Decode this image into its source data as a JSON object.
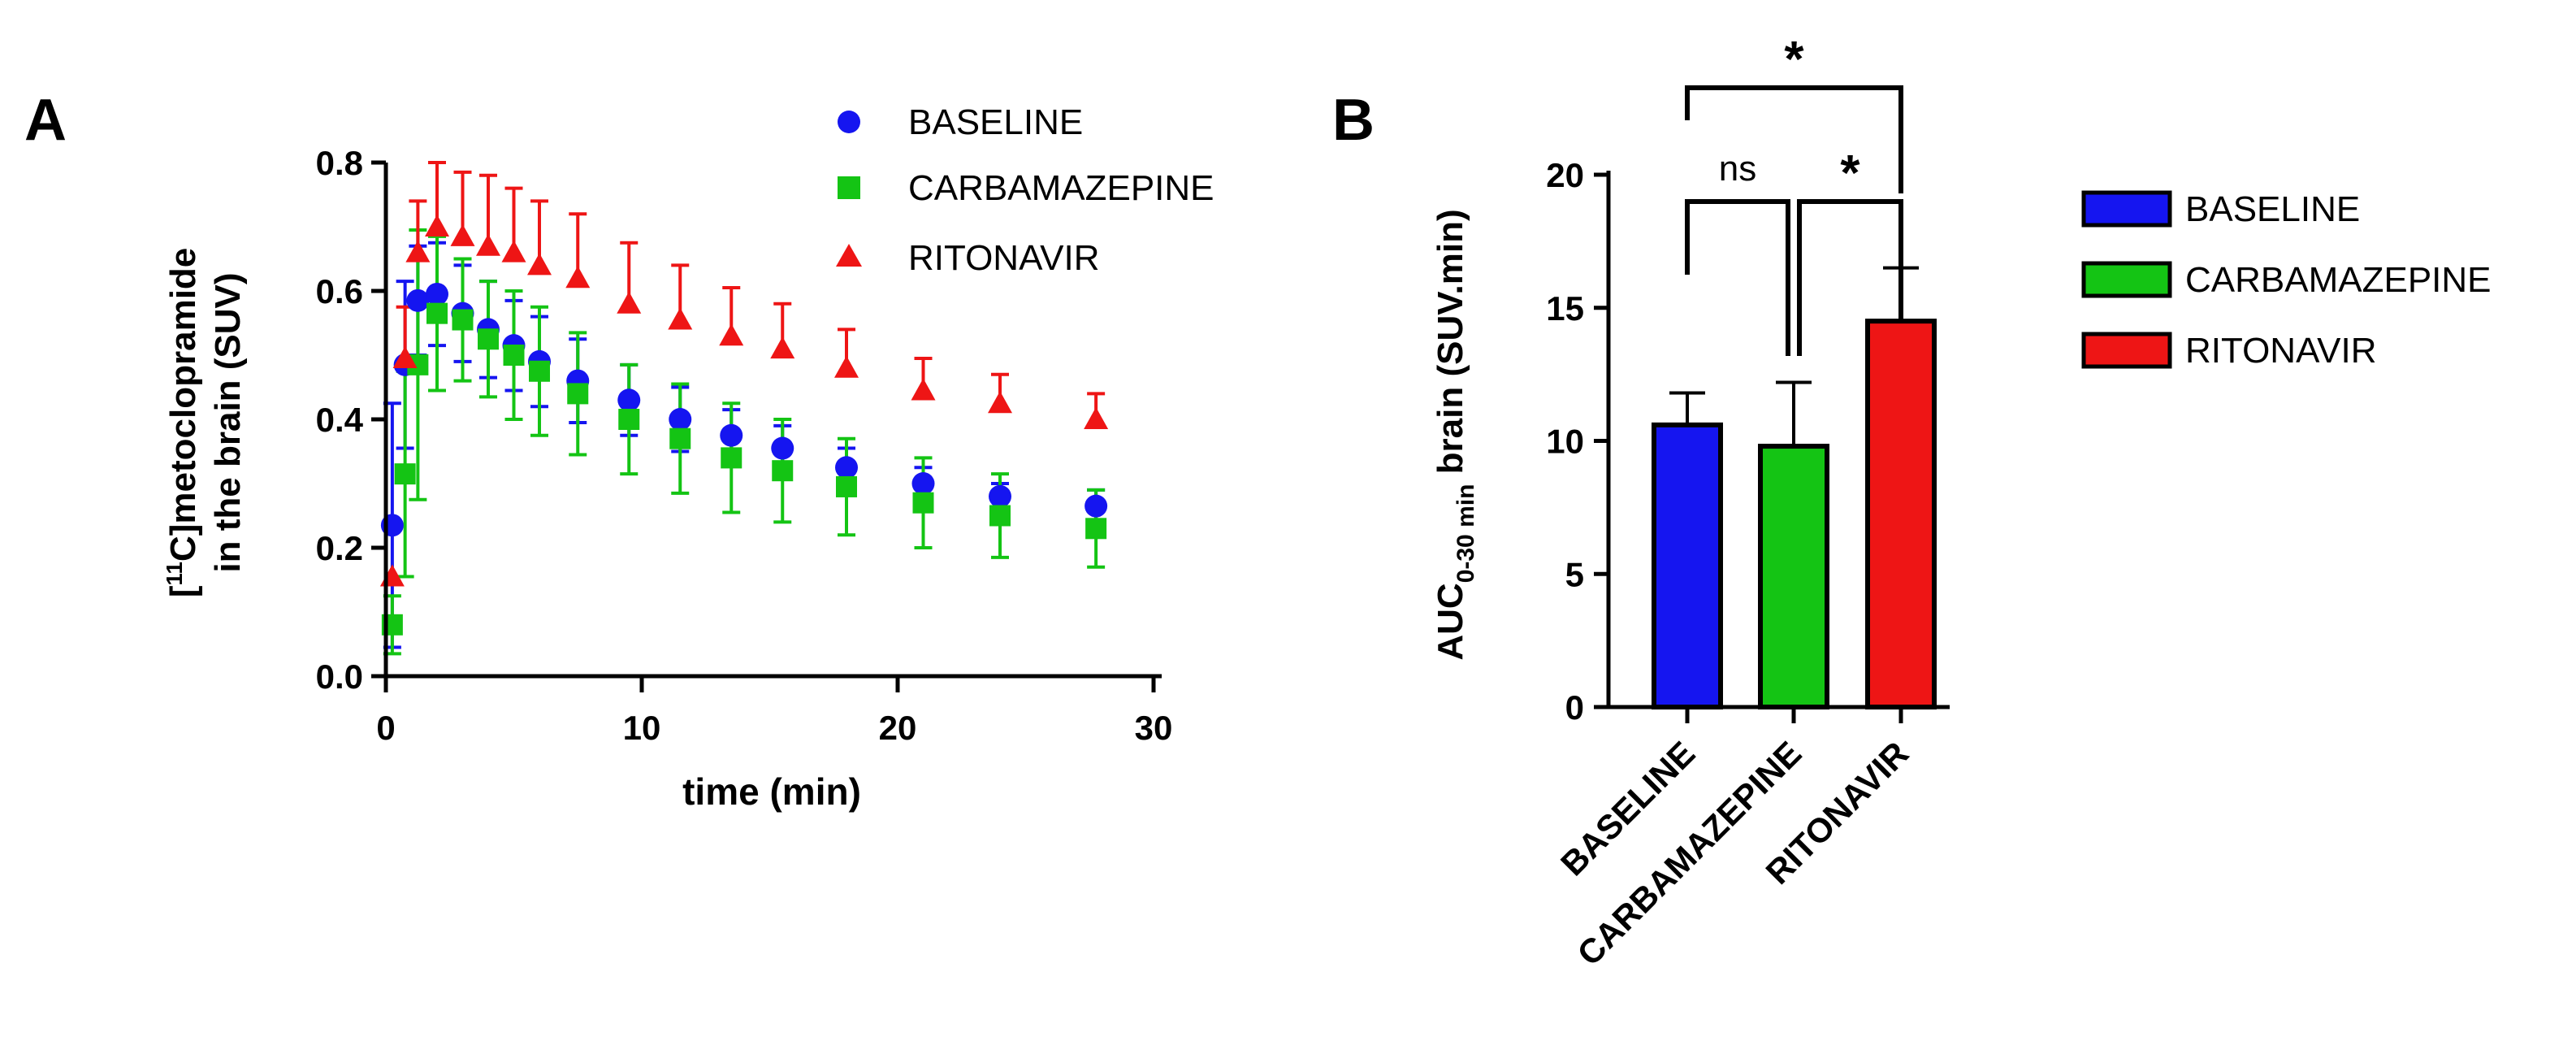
{
  "panels": {
    "a_letter": "A",
    "b_letter": "B"
  },
  "colors": {
    "baseline": "#1515f0",
    "carbamazepine": "#14c414",
    "ritonavir": "#ee1515",
    "axis": "#000000"
  },
  "chart_data": [
    {
      "type": "scatter",
      "panel": "A",
      "xlabel": "time (min)",
      "ylabel_line1_prefix": "[",
      "ylabel_line1_sup": "11",
      "ylabel_line1_rest": "C]metoclopramide",
      "ylabel_line2": "in the brain (SUV)",
      "xlim": [
        0,
        30
      ],
      "ylim": [
        0,
        0.8
      ],
      "xticks": [
        "0",
        "10",
        "20",
        "30"
      ],
      "yticks": [
        "0.0",
        "0.2",
        "0.4",
        "0.6",
        "0.8"
      ],
      "legend_position": "top-right",
      "series": [
        {
          "name": "BASELINE",
          "marker": "circle",
          "x": [
            0.25,
            0.75,
            1.25,
            2,
            3,
            4,
            5,
            6,
            7.5,
            9.5,
            11.5,
            13.5,
            15.5,
            18,
            21,
            24,
            27.75
          ],
          "y": [
            0.235,
            0.485,
            0.585,
            0.595,
            0.565,
            0.54,
            0.515,
            0.49,
            0.46,
            0.43,
            0.4,
            0.375,
            0.355,
            0.325,
            0.3,
            0.28,
            0.265
          ],
          "err": [
            0.19,
            0.13,
            0.085,
            0.08,
            0.075,
            0.075,
            0.07,
            0.07,
            0.065,
            0.055,
            0.05,
            0.04,
            0.035,
            0.03,
            0.025,
            0.02,
            0.025
          ]
        },
        {
          "name": "CARBAMAZEPINE",
          "marker": "square",
          "x": [
            0.25,
            0.75,
            1.25,
            2,
            3,
            4,
            5,
            6,
            7.5,
            9.5,
            11.5,
            13.5,
            15.5,
            18,
            21,
            24,
            27.75
          ],
          "y": [
            0.08,
            0.315,
            0.485,
            0.565,
            0.555,
            0.525,
            0.5,
            0.475,
            0.44,
            0.4,
            0.37,
            0.34,
            0.32,
            0.295,
            0.27,
            0.25,
            0.23
          ],
          "err": [
            0.045,
            0.16,
            0.21,
            0.12,
            0.095,
            0.09,
            0.1,
            0.1,
            0.095,
            0.085,
            0.085,
            0.085,
            0.08,
            0.075,
            0.07,
            0.065,
            0.06
          ]
        },
        {
          "name": "RITONAVIR",
          "marker": "triangle",
          "x": [
            0.25,
            0.75,
            1.25,
            2,
            3,
            4,
            5,
            6,
            7.5,
            9.5,
            11.5,
            13.5,
            15.5,
            18,
            21,
            24,
            27.75
          ],
          "y": [
            0.155,
            0.495,
            0.66,
            0.7,
            0.685,
            0.67,
            0.66,
            0.64,
            0.62,
            0.58,
            0.555,
            0.53,
            0.51,
            0.48,
            0.445,
            0.425,
            0.4
          ],
          "err": [
            0.0,
            0.08,
            0.08,
            0.1,
            0.1,
            0.11,
            0.1,
            0.1,
            0.1,
            0.095,
            0.085,
            0.075,
            0.07,
            0.06,
            0.05,
            0.045,
            0.04
          ]
        }
      ]
    },
    {
      "type": "bar",
      "panel": "B",
      "ylabel_prefix": "AUC",
      "ylabel_sub": "0-30 min",
      "ylabel_rest": " brain (SUV.min)",
      "categories": [
        "BASELINE",
        "CARBAMAZEPINE",
        "RITONAVIR"
      ],
      "values": [
        10.6,
        9.8,
        14.5
      ],
      "errors": [
        1.2,
        2.4,
        2.0
      ],
      "ylim": [
        0,
        20
      ],
      "yticks": [
        "0",
        "5",
        "10",
        "15",
        "20"
      ],
      "legend_position": "right",
      "legend": [
        "BASELINE",
        "CARBAMAZEPINE",
        "RITONAVIR"
      ],
      "significance": [
        {
          "from": 0,
          "to": 1,
          "label": "ns"
        },
        {
          "from": 1,
          "to": 2,
          "label": "*"
        },
        {
          "from": 0,
          "to": 2,
          "label": "*"
        }
      ]
    }
  ]
}
